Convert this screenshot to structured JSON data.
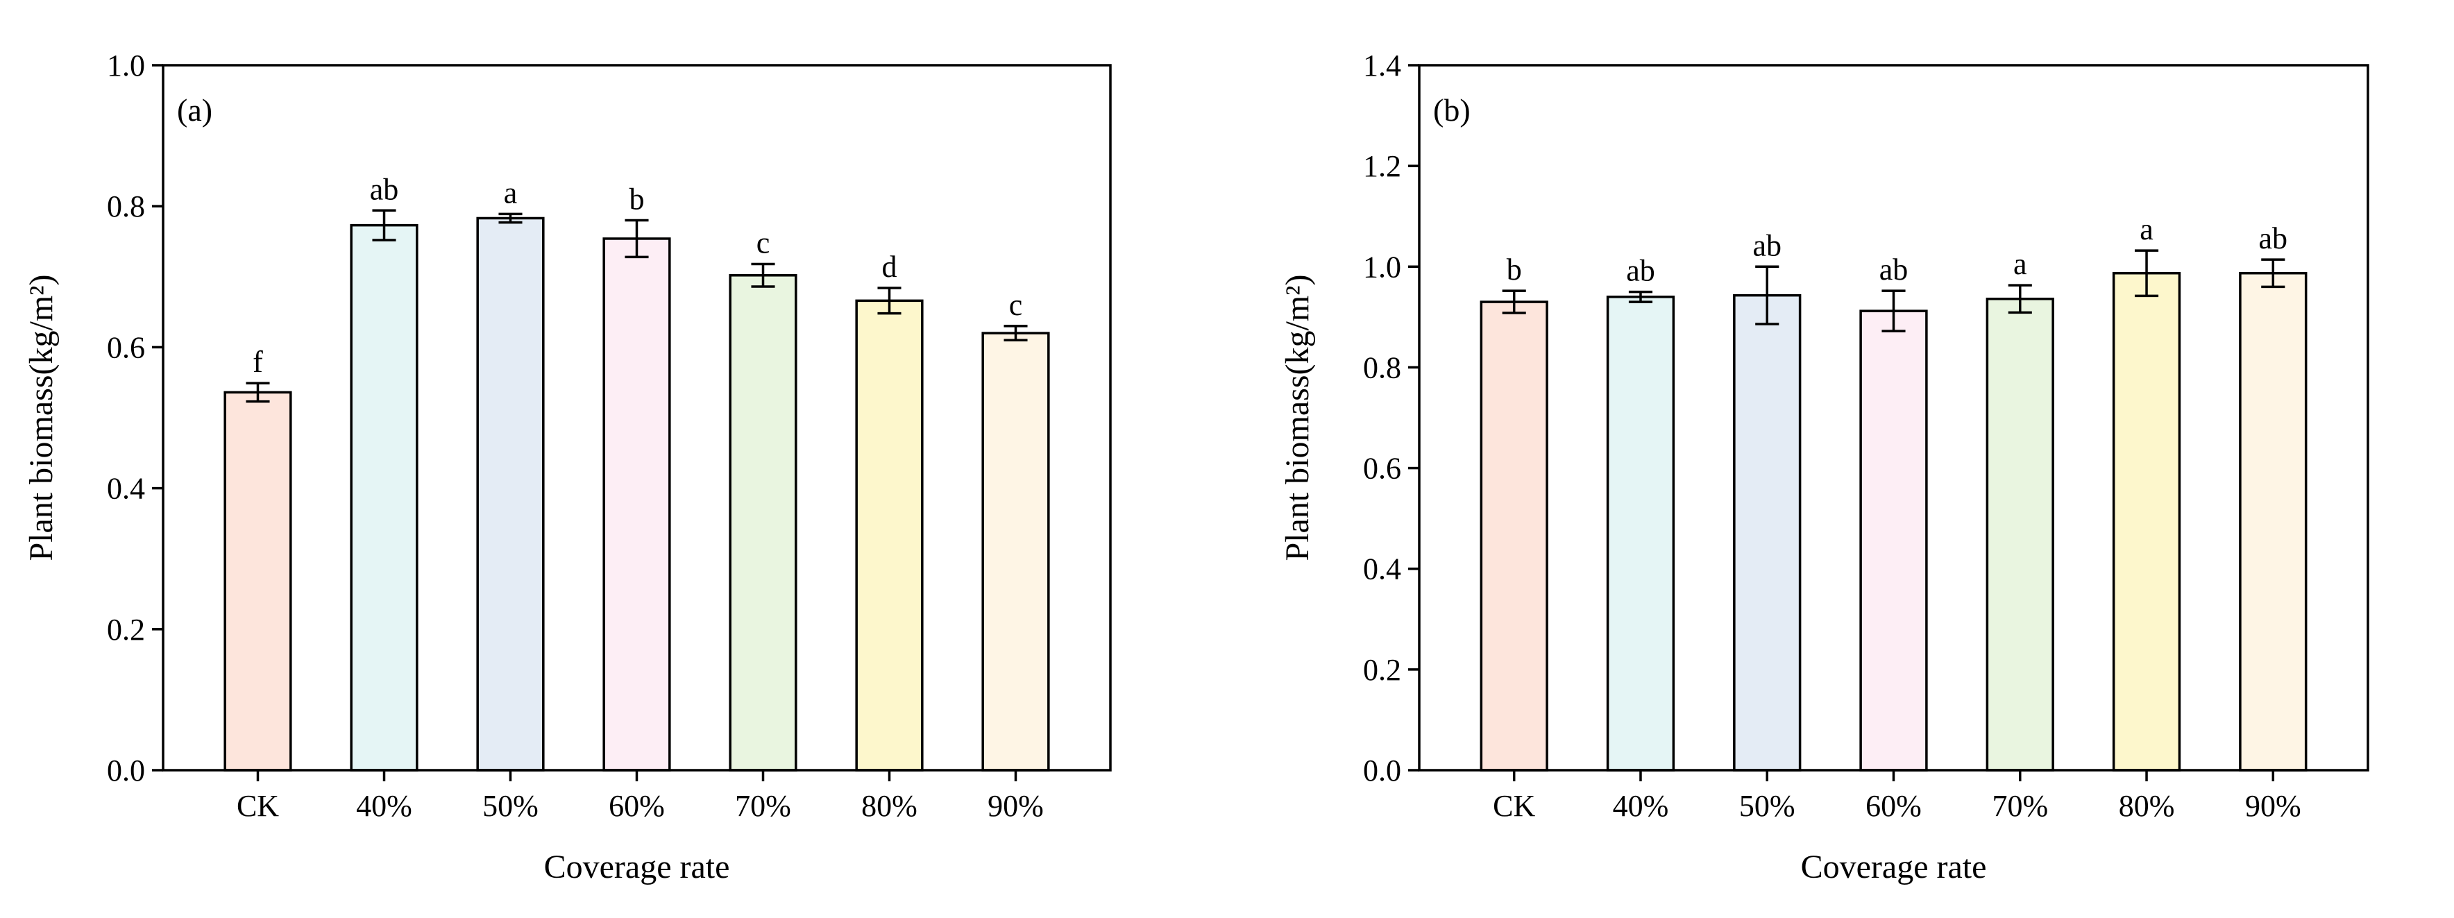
{
  "chart_data": [
    {
      "type": "bar",
      "panel_label": "(a)",
      "categories": [
        "CK",
        "40%",
        "50%",
        "60%",
        "70%",
        "80%",
        "90%"
      ],
      "values": [
        0.536,
        0.773,
        0.783,
        0.754,
        0.702,
        0.666,
        0.62
      ],
      "errors": [
        0.013,
        0.021,
        0.006,
        0.026,
        0.016,
        0.018,
        0.01
      ],
      "significance": [
        "f",
        "ab",
        "a",
        "b",
        "c",
        "d",
        "c"
      ],
      "colors": [
        "#fde5dc",
        "#e5f5f5",
        "#e4ecf5",
        "#fdeef5",
        "#e9f5e0",
        "#fdf7cc",
        "#fef5e5"
      ],
      "xlabel": "Coverage rate",
      "ylabel": "Plant biomass(kg/m²)",
      "ylim": [
        0,
        1.0
      ],
      "yticks": [
        0.0,
        0.2,
        0.4,
        0.6,
        0.8,
        1.0
      ],
      "ytick_labels": [
        "0.0",
        "0.2",
        "0.4",
        "0.6",
        "0.8",
        "1.0"
      ]
    },
    {
      "type": "bar",
      "panel_label": "(b)",
      "categories": [
        "CK",
        "40%",
        "50%",
        "60%",
        "70%",
        "80%",
        "90%"
      ],
      "values": [
        0.93,
        0.94,
        0.943,
        0.912,
        0.936,
        0.987,
        0.987
      ],
      "errors": [
        0.022,
        0.01,
        0.057,
        0.04,
        0.027,
        0.045,
        0.027
      ],
      "significance": [
        "b",
        "ab",
        "ab",
        "ab",
        "a",
        "a",
        "ab"
      ],
      "colors": [
        "#fde5dc",
        "#e5f5f5",
        "#e4ecf5",
        "#fdeef5",
        "#e9f5e0",
        "#fdf7cc",
        "#fef5e5"
      ],
      "xlabel": "Coverage rate",
      "ylabel": "Plant biomass(kg/m²)",
      "ylim": [
        0,
        1.4
      ],
      "yticks": [
        0.0,
        0.2,
        0.4,
        0.6,
        0.8,
        1.0,
        1.2,
        1.4
      ],
      "ytick_labels": [
        "0.0",
        "0.2",
        "0.4",
        "0.6",
        "0.8",
        "1.0",
        "1.2",
        "1.4"
      ]
    }
  ]
}
